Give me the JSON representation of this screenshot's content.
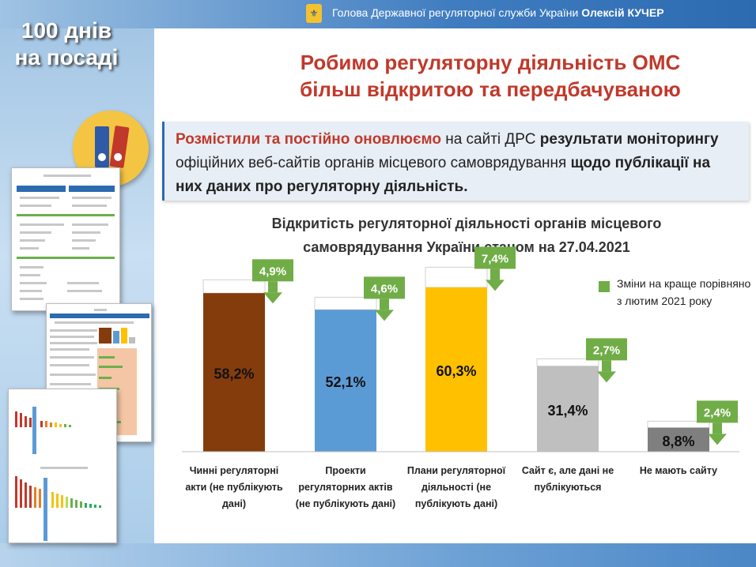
{
  "header": {
    "text": "Голова Державної регуляторної служби України",
    "name": "Олексій КУЧЕР"
  },
  "badge": {
    "line1": "100 днів",
    "line2": "на посаді"
  },
  "title": {
    "line1": "Робимо регуляторну діяльність ОМС",
    "line2": "більш відкритою та передбачуваною"
  },
  "info": {
    "part1": "Розмістили та постійно оновлюємо",
    "part2": " на сайті ДРС ",
    "part3": "результати моніторингу",
    "part4": " офіційних веб-сайтів органів місцевого самоврядування ",
    "part5": "щодо публікації на них даних про регуляторну діяльність."
  },
  "chart_title": {
    "line1": "Відкритість регуляторної діяльності органів місцевого",
    "line2": "самоврядування України станом на 27.04.2021"
  },
  "legend": {
    "text": "Зміни на краще порівняно з лютим 2021 року"
  },
  "colors": {
    "bar1": "#843c0c",
    "bar2": "#5b9bd5",
    "bar3": "#ffc000",
    "bar4": "#bfbfbf",
    "bar5": "#7f7f7f",
    "arrow": "#70ad47",
    "accent": "#c0392b"
  },
  "chart_data": {
    "type": "bar",
    "title": "Відкритість регуляторної діяльності органів місцевого самоврядування України станом на 27.04.2021",
    "categories": [
      "Чинні регуляторні акти (не публікують дані)",
      "Проекти регуляторних актів (не публікують дані)",
      "Плани регуляторної діяльності (не публікують дані)",
      "Сайт є, але дані не публікуються",
      "Не мають сайту"
    ],
    "values": [
      58.2,
      52.1,
      60.3,
      31.4,
      8.8
    ],
    "value_labels": [
      "58,2%",
      "52,1%",
      "60,3%",
      "31,4%",
      "8,8%"
    ],
    "changes": [
      4.9,
      4.6,
      7.4,
      2.7,
      2.4
    ],
    "change_labels": [
      "4,9%",
      "4,6%",
      "7,4%",
      "2,7%",
      "2,4%"
    ],
    "series_name": "станом на 27.04.2021",
    "change_series_name": "Зміни на краще порівняно з лютим 2021 року",
    "ylim": [
      0,
      75
    ]
  }
}
